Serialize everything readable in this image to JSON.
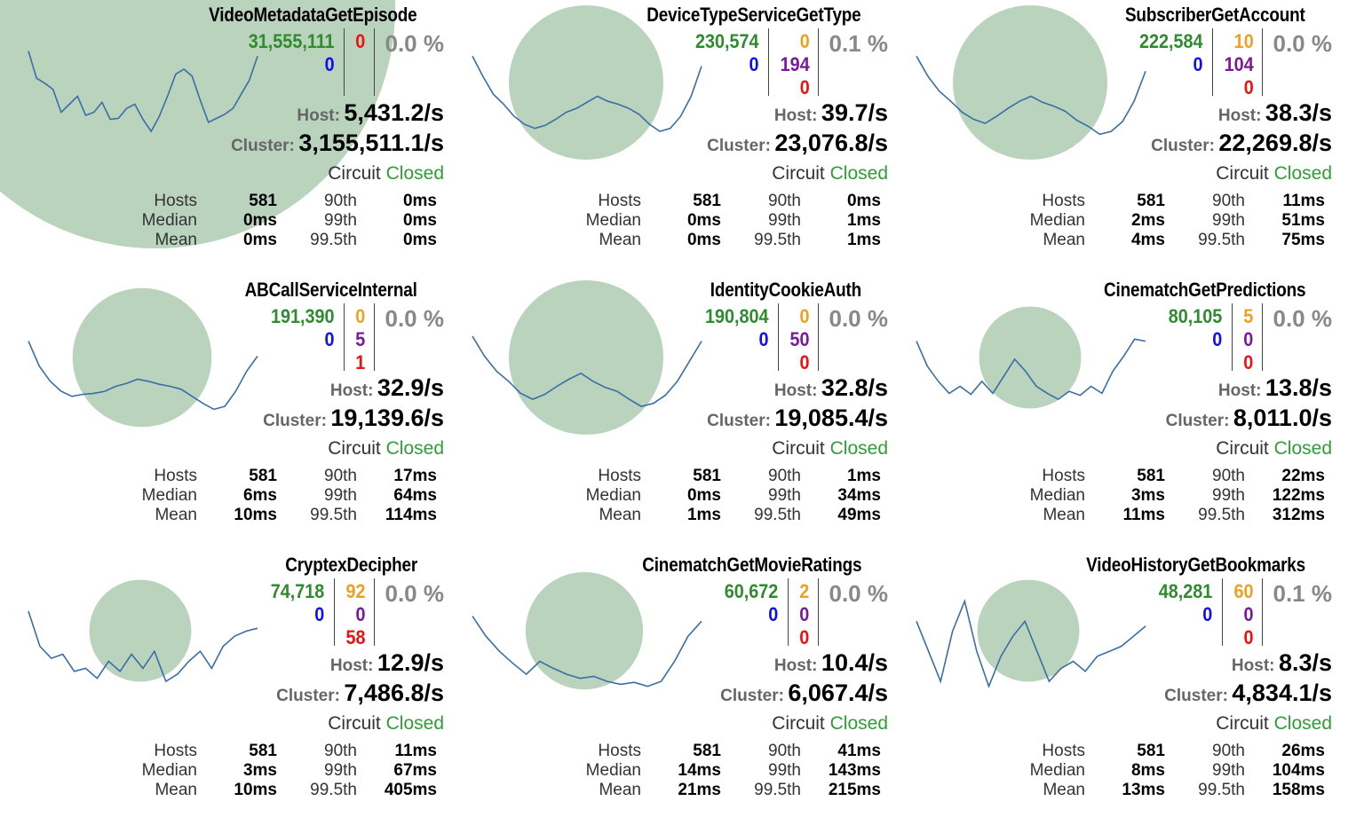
{
  "colors": {
    "circle": "#b9d3bd",
    "spark": "#3a6ea5",
    "success": "#2e8b2e",
    "shortCircuit": "#1010ee",
    "timeout": "#f0a020",
    "rejected": "#7a1a9a",
    "failure": "#ee1111",
    "circuitClosed": "#2e9e35"
  },
  "labels": {
    "host": "Host:",
    "cluster": "Cluster:",
    "circuit": "Circuit",
    "hosts": "Hosts",
    "median": "Median",
    "mean": "Mean",
    "p90": "90th",
    "p99": "99th",
    "p995": "99.5th"
  },
  "panels": [
    {
      "name": "VideoMetadataGetEpisode",
      "success": "31,555,111",
      "shortCircuited": "0",
      "failure": "0",
      "errorRate": "0.0 %",
      "hostRate": "5,431.2/s",
      "clusterRate": "3,155,511.1/s",
      "circuitStatus": "Closed",
      "hosts": "581",
      "median": "0ms",
      "mean": "0ms",
      "p90": "0ms",
      "p99": "0ms",
      "p995": "0ms",
      "spark": [
        0.05,
        0.32,
        0.37,
        0.43,
        0.66,
        0.58,
        0.5,
        0.69,
        0.66,
        0.56,
        0.73,
        0.72,
        0.62,
        0.58,
        0.73,
        0.85,
        0.7,
        0.5,
        0.28,
        0.23,
        0.3,
        0.54,
        0.76,
        0.72,
        0.68,
        0.62,
        0.48,
        0.34,
        0.1
      ],
      "circleSize": 1.0
    },
    {
      "name": "DeviceTypeServiceGetType",
      "success": "230,574",
      "shortCircuited": "0",
      "timeout": "0",
      "rejected": "194",
      "failure": "0",
      "errorRate": "0.1 %",
      "hostRate": "39.7/s",
      "clusterRate": "23,076.8/s",
      "circuitStatus": "Closed",
      "hosts": "581",
      "median": "0ms",
      "mean": "0ms",
      "p90": "0ms",
      "p99": "1ms",
      "p995": "1ms",
      "spark": [
        0.1,
        0.3,
        0.48,
        0.58,
        0.7,
        0.78,
        0.82,
        0.79,
        0.73,
        0.66,
        0.62,
        0.56,
        0.5,
        0.55,
        0.58,
        0.62,
        0.68,
        0.78,
        0.85,
        0.82,
        0.7,
        0.5,
        0.2
      ],
      "circleSize": 0.5
    },
    {
      "name": "SubscriberGetAccount",
      "success": "222,584",
      "shortCircuited": "0",
      "timeout": "10",
      "rejected": "104",
      "failure": "0",
      "errorRate": "0.0 %",
      "hostRate": "38.3/s",
      "clusterRate": "22,269.8/s",
      "circuitStatus": "Closed",
      "hosts": "581",
      "median": "2ms",
      "mean": "4ms",
      "p90": "11ms",
      "p99": "51ms",
      "p995": "75ms",
      "spark": [
        0.1,
        0.3,
        0.45,
        0.55,
        0.66,
        0.73,
        0.77,
        0.7,
        0.62,
        0.55,
        0.5,
        0.56,
        0.6,
        0.65,
        0.74,
        0.8,
        0.88,
        0.85,
        0.75,
        0.55,
        0.25
      ],
      "circleSize": 0.5
    },
    {
      "name": "ABCallServiceInternal",
      "success": "191,390",
      "shortCircuited": "0",
      "timeout": "0",
      "rejected": "5",
      "failure": "1",
      "errorRate": "0.0 %",
      "hostRate": "32.9/s",
      "clusterRate": "19,139.6/s",
      "circuitStatus": "Closed",
      "hosts": "581",
      "median": "6ms",
      "mean": "10ms",
      "p90": "17ms",
      "p99": "64ms",
      "p995": "114ms",
      "spark": [
        0.2,
        0.45,
        0.6,
        0.7,
        0.75,
        0.73,
        0.72,
        0.7,
        0.65,
        0.62,
        0.58,
        0.6,
        0.63,
        0.65,
        0.68,
        0.75,
        0.82,
        0.88,
        0.85,
        0.7,
        0.5,
        0.35
      ],
      "circleSize": 0.45
    },
    {
      "name": "IdentityCookieAuth",
      "success": "190,804",
      "shortCircuited": "0",
      "timeout": "0",
      "rejected": "50",
      "failure": "0",
      "errorRate": "0.0 %",
      "hostRate": "32.8/s",
      "clusterRate": "19,085.4/s",
      "circuitStatus": "Closed",
      "hosts": "581",
      "median": "0ms",
      "mean": "1ms",
      "p90": "1ms",
      "p99": "34ms",
      "p995": "49ms",
      "spark": [
        0.15,
        0.35,
        0.5,
        0.6,
        0.72,
        0.78,
        0.73,
        0.65,
        0.58,
        0.52,
        0.6,
        0.66,
        0.7,
        0.78,
        0.85,
        0.82,
        0.74,
        0.6,
        0.4,
        0.2
      ],
      "circleSize": 0.5
    },
    {
      "name": "CinematchGetPredictions",
      "success": "80,105",
      "shortCircuited": "0",
      "timeout": "5",
      "rejected": "0",
      "failure": "0",
      "errorRate": "0.0 %",
      "hostRate": "13.8/s",
      "clusterRate": "8,011.0/s",
      "circuitStatus": "Closed",
      "hosts": "581",
      "median": "3ms",
      "mean": "11ms",
      "p90": "22ms",
      "p99": "122ms",
      "p995": "312ms",
      "spark": [
        0.2,
        0.45,
        0.6,
        0.72,
        0.65,
        0.73,
        0.6,
        0.72,
        0.55,
        0.38,
        0.5,
        0.65,
        0.72,
        0.78,
        0.7,
        0.74,
        0.65,
        0.72,
        0.5,
        0.35,
        0.18,
        0.2
      ],
      "circleSize": 0.33
    },
    {
      "name": "CryptexDecipher",
      "success": "74,718",
      "shortCircuited": "0",
      "timeout": "92",
      "rejected": "0",
      "failure": "58",
      "errorRate": "0.0 %",
      "hostRate": "12.9/s",
      "clusterRate": "7,486.8/s",
      "circuitStatus": "Closed",
      "hosts": "581",
      "median": "3ms",
      "mean": "10ms",
      "p90": "11ms",
      "p99": "67ms",
      "p995": "405ms",
      "spark": [
        0.15,
        0.5,
        0.62,
        0.58,
        0.75,
        0.72,
        0.82,
        0.65,
        0.75,
        0.58,
        0.72,
        0.55,
        0.85,
        0.78,
        0.65,
        0.55,
        0.72,
        0.5,
        0.4,
        0.35,
        0.32
      ],
      "circleSize": 0.33
    },
    {
      "name": "CinematchGetMovieRatings",
      "success": "60,672",
      "shortCircuited": "0",
      "timeout": "2",
      "rejected": "0",
      "failure": "0",
      "errorRate": "0.0 %",
      "hostRate": "10.4/s",
      "clusterRate": "6,067.4/s",
      "circuitStatus": "Closed",
      "hosts": "581",
      "median": "14ms",
      "mean": "21ms",
      "p90": "41ms",
      "p99": "143ms",
      "p995": "215ms",
      "spark": [
        0.2,
        0.4,
        0.55,
        0.67,
        0.78,
        0.65,
        0.72,
        0.78,
        0.82,
        0.8,
        0.85,
        0.88,
        0.86,
        0.9,
        0.85,
        0.65,
        0.4,
        0.25
      ],
      "circleSize": 0.38
    },
    {
      "name": "VideoHistoryGetBookmarks",
      "success": "48,281",
      "shortCircuited": "0",
      "timeout": "60",
      "rejected": "0",
      "failure": "0",
      "errorRate": "0.1 %",
      "hostRate": "8.3/s",
      "clusterRate": "4,834.1/s",
      "circuitStatus": "Closed",
      "hosts": "581",
      "median": "8ms",
      "mean": "13ms",
      "p90": "26ms",
      "p99": "104ms",
      "p995": "158ms",
      "spark": [
        0.25,
        0.55,
        0.85,
        0.35,
        0.05,
        0.55,
        0.9,
        0.6,
        0.4,
        0.25,
        0.55,
        0.85,
        0.72,
        0.65,
        0.75,
        0.6,
        0.55,
        0.5,
        0.4,
        0.3
      ],
      "circleSize": 0.33
    }
  ]
}
